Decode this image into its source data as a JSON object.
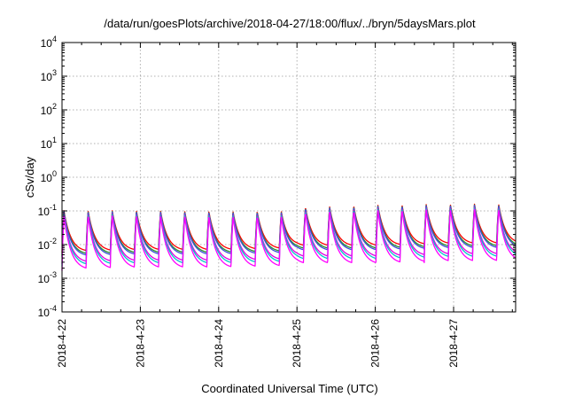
{
  "chart_data": {
    "type": "area",
    "title": "/data/run/goesPlots/archive/2018-04-27/18:00/flux/../bryn/5daysMars.plot",
    "xlabel": "Coordinated Universal Time (UTC)",
    "ylabel": "cSv/day",
    "yscale": "log",
    "ylim": [
      0.0001,
      10000
    ],
    "xlim": [
      "2018-04-22T00:00",
      "2018-04-27T19:00"
    ],
    "grid": true,
    "y_ticks": [
      {
        "base": "10",
        "exp": "-4"
      },
      {
        "base": "10",
        "exp": "-3"
      },
      {
        "base": "10",
        "exp": "-2"
      },
      {
        "base": "10",
        "exp": "-1"
      },
      {
        "base": "10",
        "exp": "0"
      },
      {
        "base": "10",
        "exp": "1"
      },
      {
        "base": "10",
        "exp": "2"
      },
      {
        "base": "10",
        "exp": "3"
      },
      {
        "base": "10",
        "exp": "4"
      }
    ],
    "x_ticks": [
      "2018-4-22",
      "2018-4-23",
      "2018-4-24",
      "2018-4-25",
      "2018-4-26",
      "2018-4-27"
    ],
    "cycle_period_hours": 7.4,
    "envelope": [
      {
        "x": "2018-04-22T00:00",
        "peak": 0.09,
        "trough": 0.004
      },
      {
        "x": "2018-04-23T00:00",
        "peak": 0.09,
        "trough": 0.0045
      },
      {
        "x": "2018-04-24T00:00",
        "peak": 0.085,
        "trough": 0.0045
      },
      {
        "x": "2018-04-24T20:00",
        "peak": 0.085,
        "trough": 0.005
      },
      {
        "x": "2018-04-25T00:00",
        "peak": 0.11,
        "trough": 0.006
      },
      {
        "x": "2018-04-26T00:00",
        "peak": 0.13,
        "trough": 0.006
      },
      {
        "x": "2018-04-27T00:00",
        "peak": 0.14,
        "trough": 0.007
      },
      {
        "x": "2018-04-27T19:00",
        "peak": 0.14,
        "trough": 0.007
      }
    ],
    "series": [
      {
        "color": "#ff0000",
        "level": 1.15
      },
      {
        "color": "#2a8f2a",
        "level": 1.0
      },
      {
        "color": "#3a4fd8",
        "level": 0.93
      },
      {
        "color": "#e000e0",
        "level": 0.55
      },
      {
        "color": "#00c8c8",
        "level": 0.42
      },
      {
        "color": "#ff00ff",
        "level": 0.18
      }
    ]
  }
}
